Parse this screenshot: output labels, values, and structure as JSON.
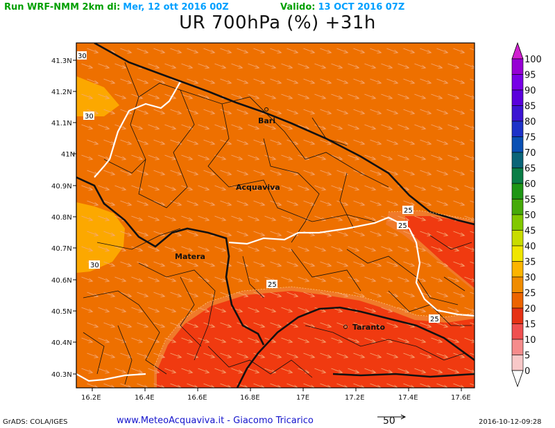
{
  "header": {
    "run_label": "Run WRF-NMM 2km di:",
    "run_date": "Mer, 12 ott 2016 00Z",
    "valid_label": "Valido:",
    "valid_date": "13 OCT 2016 07Z",
    "title": "UR 700hPa (%) +31h",
    "colors": {
      "label": "#00a000",
      "date": "#00a0ff"
    }
  },
  "map": {
    "lon_ticks": [
      "16.2E",
      "16.4E",
      "16.6E",
      "16.8E",
      "17E",
      "17.2E",
      "17.4E",
      "17.6E"
    ],
    "lat_ticks": [
      "41.3N",
      "41.2N",
      "41.1N",
      "41N",
      "40.9N",
      "40.8N",
      "40.7N",
      "40.6N",
      "40.5N",
      "40.4N",
      "40.3N"
    ],
    "cities": [
      "Bari",
      "Acquaviva",
      "Matera",
      "Taranto"
    ],
    "contour_labels": [
      "30",
      "30",
      "30",
      "25",
      "25",
      "25",
      "25"
    ],
    "fill_colors": {
      "rh_30_35": "#ee7000",
      "rh_35_40": "#fca800",
      "rh_20_25": "#f03a10",
      "rh_25_30_ring": "#f07a2a"
    },
    "wind_arrow_color": "#f4a876"
  },
  "colorbar": {
    "levels": [
      "100",
      "95",
      "90",
      "85",
      "80",
      "75",
      "70",
      "65",
      "60",
      "55",
      "50",
      "45",
      "40",
      "35",
      "30",
      "25",
      "20",
      "15",
      "10",
      "5",
      "0"
    ],
    "colors": [
      "#9600d4",
      "#7800e6",
      "#5a00dc",
      "#3c14d2",
      "#1e32c8",
      "#0a50b4",
      "#0a6478",
      "#0a7d46",
      "#1e9614",
      "#46aa0a",
      "#82c800",
      "#c8dc00",
      "#f0e600",
      "#fcb400",
      "#f08c00",
      "#ec6400",
      "#e63214",
      "#f05050",
      "#f58c8c",
      "#f8c8c8"
    ],
    "top_color": "#d020d0"
  },
  "footer": {
    "left": "GrADS: COLA/IGES",
    "center": "www.MeteoAcquaviva.it  -  Giacomo Tricarico",
    "vector_ref": "50",
    "right": "2016-10-12-09:28"
  }
}
